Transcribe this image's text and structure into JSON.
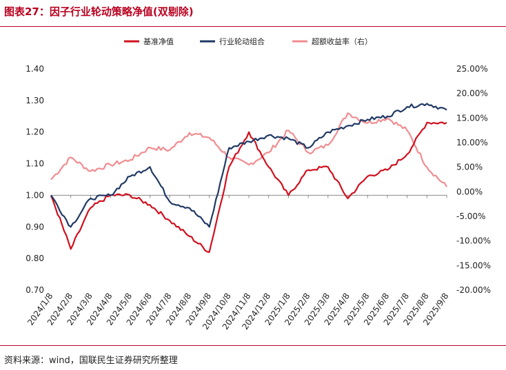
{
  "figure": {
    "title": "图表27：因子行业轮动策略净值(双剔除)",
    "source": "资料来源：wind，国联民生证券研究所整理"
  },
  "chart_data": {
    "type": "line",
    "title": "因子行业轮动策略净值(双剔除)",
    "legend_position": "top",
    "x": [
      "2024/1/8",
      "2024/2/8",
      "2024/3/8",
      "2024/4/8",
      "2024/5/8",
      "2024/6/8",
      "2024/7/8",
      "2024/8/8",
      "2024/9/8",
      "2024/10/8",
      "2024/11/8",
      "2024/12/8",
      "2025/1/8",
      "2025/2/8",
      "2025/3/8",
      "2025/4/8",
      "2025/5/8",
      "2025/6/8",
      "2025/7/8",
      "2025/8/8",
      "2025/9/8"
    ],
    "y_left": {
      "ylim": [
        0.7,
        1.4
      ],
      "ticks": [
        "0.70",
        "0.80",
        "0.90",
        "1.00",
        "1.10",
        "1.20",
        "1.30",
        "1.40"
      ]
    },
    "y_right": {
      "ylim": [
        -20,
        25
      ],
      "ticks": [
        "-20.00%",
        "-15.00%",
        "-10.00%",
        "-5.00%",
        "0.00%",
        "5.00%",
        "10.00%",
        "15.00%",
        "20.00%",
        "25.00%"
      ]
    },
    "series": [
      {
        "name": "基准净值",
        "axis": "left",
        "color": "#d0101e",
        "values": [
          1.0,
          0.83,
          0.96,
          1.0,
          1.0,
          0.97,
          0.92,
          0.87,
          0.82,
          1.09,
          1.2,
          1.09,
          1.0,
          1.08,
          1.09,
          0.99,
          1.06,
          1.08,
          1.13,
          1.23,
          1.23
        ]
      },
      {
        "name": "行业轮动组合",
        "axis": "left",
        "color": "#1f3864",
        "values": [
          1.0,
          0.9,
          0.99,
          1.0,
          1.06,
          1.09,
          0.98,
          0.96,
          0.9,
          1.15,
          1.17,
          1.19,
          1.18,
          1.15,
          1.2,
          1.22,
          1.24,
          1.25,
          1.28,
          1.29,
          1.27
        ]
      },
      {
        "name": "超额收益率（右）",
        "axis": "right",
        "color": "#f08c90",
        "values": [
          2.5,
          7.0,
          4.2,
          5.5,
          6.5,
          9.0,
          8.5,
          12.0,
          11.0,
          7.0,
          5.5,
          8.0,
          12.5,
          8.0,
          9.5,
          16.0,
          14.0,
          15.0,
          12.5,
          5.0,
          1.0
        ]
      }
    ]
  }
}
